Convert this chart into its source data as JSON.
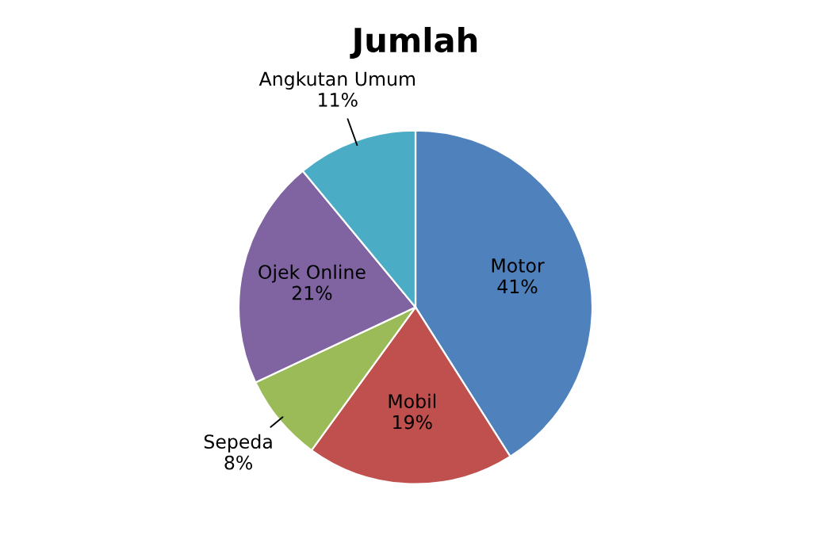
{
  "chart_data": {
    "type": "pie",
    "title": "Jumlah",
    "categories": [
      "Motor",
      "Mobil",
      "Sepeda",
      "Ojek Online",
      "Angkutan Umum"
    ],
    "values": [
      41,
      19,
      8,
      21,
      11
    ],
    "value_labels": [
      "41%",
      "19%",
      "8%",
      "21%",
      "11%"
    ],
    "colors": [
      "#4f81bd",
      "#c0504d",
      "#9bbb59",
      "#8064a2",
      "#4bacc6"
    ],
    "legend": false
  }
}
